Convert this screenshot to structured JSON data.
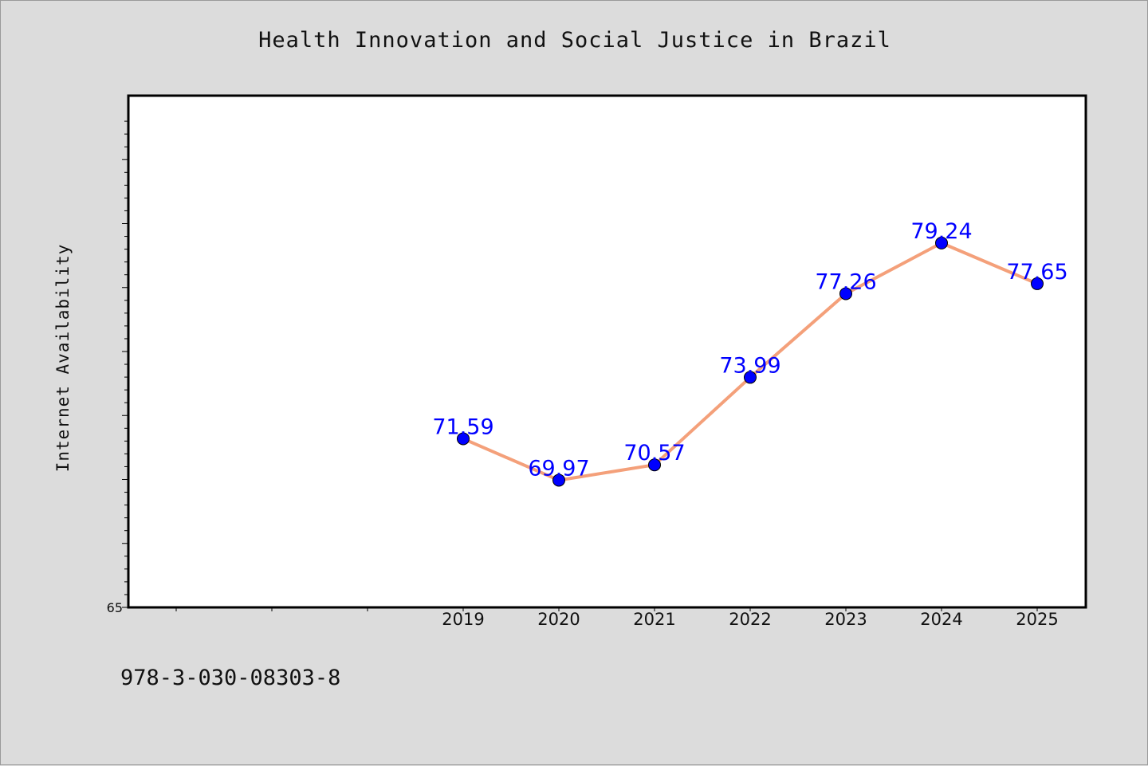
{
  "chart_data": {
    "type": "line",
    "title": "Health Innovation and Social Justice in Brazil",
    "xlabel": "",
    "ylabel": "Internet Availability",
    "x": [
      "2019",
      "2020",
      "2021",
      "2022",
      "2023",
      "2024",
      "2025"
    ],
    "series": [
      {
        "values": [
          71.59,
          69.97,
          70.57,
          73.99,
          77.26,
          79.24,
          77.65
        ]
      }
    ],
    "data_labels": [
      "71.59",
      "69.97",
      "70.57",
      "73.99",
      "77.26",
      "79.24",
      "77.65"
    ],
    "ylim": [
      65,
      85
    ],
    "y_tick_labels": [
      "65"
    ],
    "grid": false,
    "colors": {
      "line": "#f4a07a",
      "marker": "#0000ff",
      "label": "#0000ff",
      "background": "#dcdcdc",
      "plot_background": "#ffffff"
    }
  },
  "footer": {
    "code": "978-3-030-08303-8"
  }
}
